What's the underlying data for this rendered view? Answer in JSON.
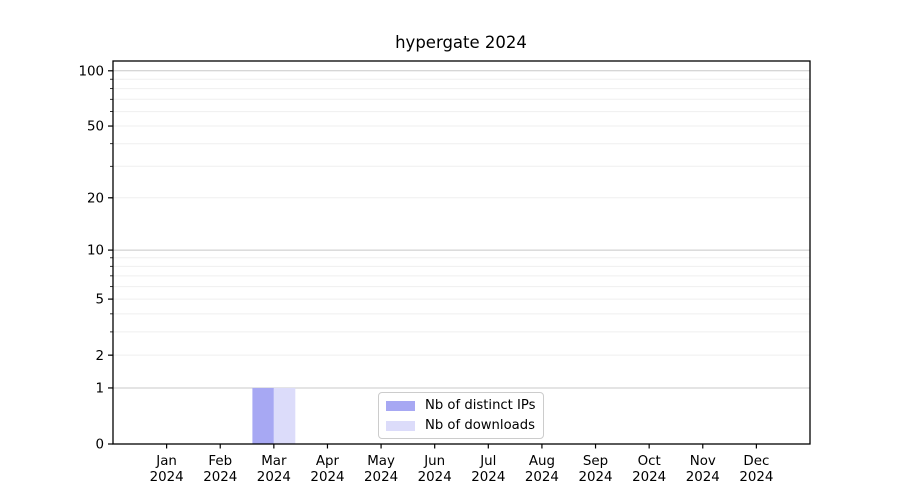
{
  "chart_data": {
    "type": "bar",
    "title": "hypergate 2024",
    "categories": [
      "Jan",
      "Feb",
      "Mar",
      "Apr",
      "May",
      "Jun",
      "Jul",
      "Aug",
      "Sep",
      "Oct",
      "Nov",
      "Dec"
    ],
    "year_label": "2024",
    "series": [
      {
        "name": "Nb of distinct IPs",
        "color": "#a7a8f3",
        "values": [
          0,
          0,
          1,
          0,
          0,
          0,
          0,
          0,
          0,
          0,
          0,
          0
        ]
      },
      {
        "name": "Nb of downloads",
        "color": "#dcdcfa",
        "values": [
          0,
          0,
          1,
          0,
          0,
          0,
          0,
          0,
          0,
          0,
          0,
          0
        ]
      }
    ],
    "y_scale": "log1p",
    "y_ticks": [
      0,
      1,
      2,
      5,
      10,
      20,
      50,
      100
    ],
    "y_major_gridlines": [
      1,
      10,
      100
    ],
    "y_minor_gridlines": [
      2,
      3,
      4,
      5,
      6,
      7,
      8,
      9,
      20,
      30,
      40,
      50,
      60,
      70,
      80,
      90
    ],
    "ylim": [
      0,
      113
    ],
    "grid": "horizontal",
    "legend_position": "lower-center",
    "colors": {
      "axis": "#000000",
      "grid_minor": "#efefef",
      "grid_major": "#c8c8c8",
      "background": "#ffffff"
    }
  }
}
